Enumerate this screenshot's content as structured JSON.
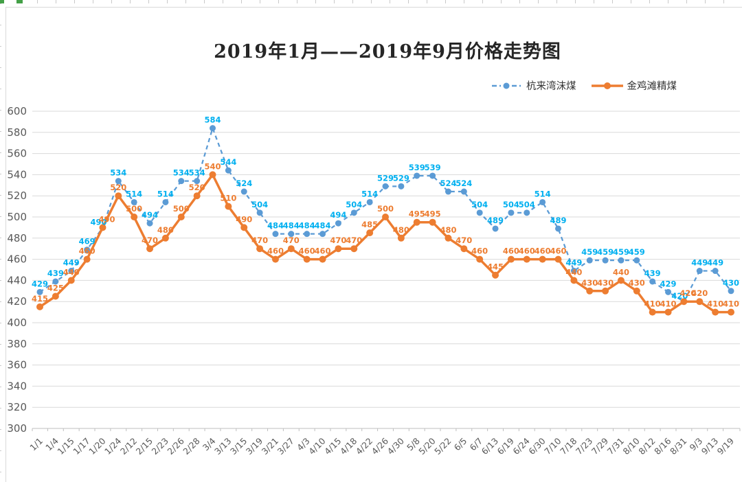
{
  "chart_data": {
    "type": "line",
    "title": "2019年1月——2019年9月价格走势图",
    "categories": [
      "1/1",
      "1/4",
      "1/15",
      "1/17",
      "1/20",
      "1/24",
      "2/12",
      "2/15",
      "2/23",
      "2/26",
      "2/28",
      "3/4",
      "3/13",
      "3/15",
      "3/19",
      "3/21",
      "3/27",
      "4/3",
      "4/10",
      "4/15",
      "4/18",
      "4/22",
      "4/26",
      "4/30",
      "5/8",
      "5/20",
      "5/22",
      "6/5",
      "6/7",
      "6/13",
      "6/19",
      "6/24",
      "6/30",
      "7/10",
      "7/18",
      "7/23",
      "7/29",
      "7/31",
      "8/10",
      "8/12",
      "8/16",
      "8/31",
      "9/3",
      "9/13",
      "9/19"
    ],
    "series": [
      {
        "name": "杭来湾沫煤",
        "color": "#5B9BD5",
        "label_color": "#00B0F0",
        "line_style": "dashed",
        "values": [
          429,
          439,
          449,
          469,
          490,
          534,
          514,
          494,
          514,
          534,
          534,
          584,
          544,
          524,
          504,
          484,
          484,
          484,
          484,
          494,
          504,
          514,
          529,
          529,
          539,
          539,
          524,
          524,
          504,
          489,
          504,
          504,
          514,
          489,
          449,
          459,
          459,
          459,
          459,
          439,
          429,
          420,
          449,
          449,
          430
        ]
      },
      {
        "name": "金鸡滩精煤",
        "color": "#ED7D31",
        "label_color": "#ED7D31",
        "line_style": "solid",
        "values": [
          415,
          425,
          440,
          460,
          490,
          520,
          500,
          470,
          480,
          500,
          520,
          540,
          510,
          490,
          470,
          460,
          470,
          460,
          460,
          470,
          470,
          485,
          500,
          480,
          495,
          495,
          480,
          470,
          460,
          445,
          460,
          460,
          460,
          460,
          440,
          430,
          430,
          440,
          430,
          410,
          410,
          420,
          420,
          410,
          410
        ]
      }
    ],
    "ylim": [
      300,
      600
    ],
    "ytick_step": 20,
    "yticks": [
      300,
      320,
      340,
      360,
      380,
      400,
      420,
      440,
      460,
      480,
      500,
      520,
      540,
      560,
      580,
      600
    ],
    "grid": true,
    "legend_position": "top-right",
    "axis_colors": {
      "grid": "#D9D9D9",
      "axis_line": "#BFBFBF",
      "y_text": "#595959",
      "x_text": "#595959"
    }
  }
}
